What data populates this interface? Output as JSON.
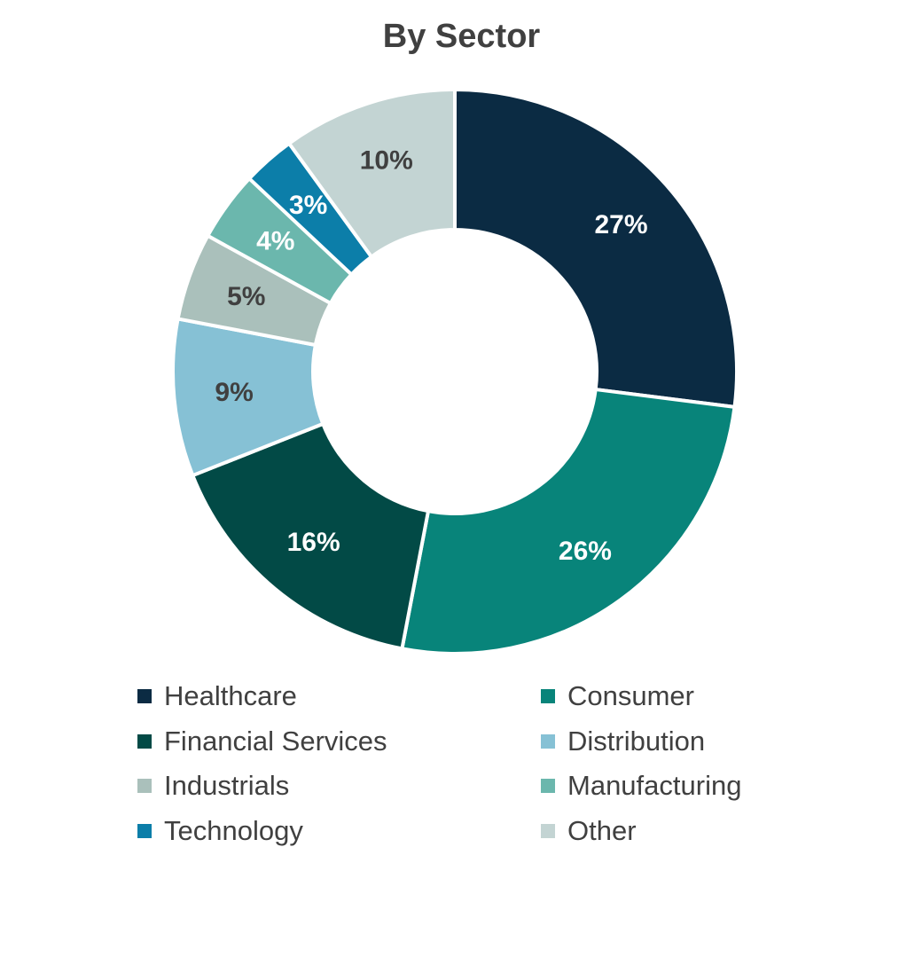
{
  "chart_data": {
    "type": "pie",
    "style": "donut",
    "title": "By Sector",
    "legend_position": "bottom",
    "slices": [
      {
        "name": "Healthcare",
        "value": 27,
        "label": "27%",
        "color": "#0b2b43",
        "label_color": "#ffffff"
      },
      {
        "name": "Consumer",
        "value": 26,
        "label": "26%",
        "color": "#08847a",
        "label_color": "#ffffff"
      },
      {
        "name": "Financial Services",
        "value": 16,
        "label": "16%",
        "color": "#024a46",
        "label_color": "#ffffff"
      },
      {
        "name": "Distribution",
        "value": 9,
        "label": "9%",
        "color": "#86c1d5",
        "label_color": "#404040"
      },
      {
        "name": "Industrials",
        "value": 5,
        "label": "5%",
        "color": "#aac0bb",
        "label_color": "#404040"
      },
      {
        "name": "Manufacturing",
        "value": 4,
        "label": "4%",
        "color": "#6bb7ad",
        "label_color": "#ffffff"
      },
      {
        "name": "Technology",
        "value": 3,
        "label": "3%",
        "color": "#0c7ea9",
        "label_color": "#ffffff"
      },
      {
        "name": "Other",
        "value": 10,
        "label": "10%",
        "color": "#c3d4d3",
        "label_color": "#404040"
      }
    ]
  }
}
